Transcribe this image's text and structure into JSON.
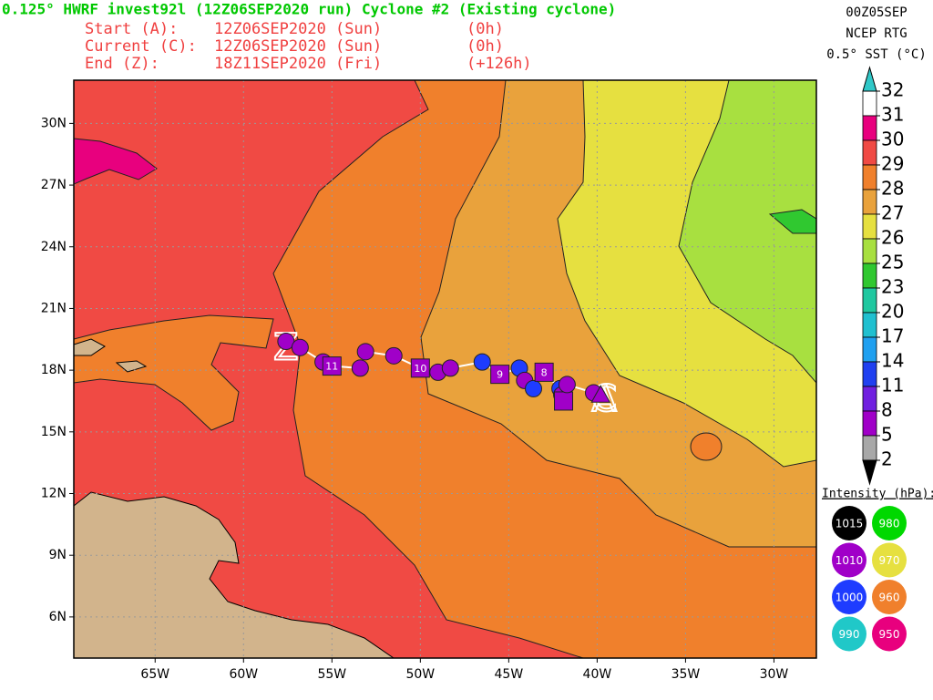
{
  "header": {
    "title": "0.125° HWRF invest92l (12Z06SEP2020 run) Cyclone #2 (Existing cyclone)",
    "lines": [
      [
        "Start (A):",
        "12Z06SEP2020 (Sun)",
        "(0h)"
      ],
      [
        "Current (C):",
        "12Z06SEP2020 (Sun)",
        "(0h)"
      ],
      [
        "End (Z):",
        "18Z11SEP2020 (Fri)",
        "(+126h)"
      ]
    ],
    "right": [
      "00Z05SEP",
      "NCEP RTG",
      "0.5° SST (°C)"
    ]
  },
  "map": {
    "lonlim": [
      -69.6,
      -27.6
    ],
    "latlim": [
      4.0,
      32.1
    ],
    "lonticks": [
      {
        "value": -65,
        "label": "65W"
      },
      {
        "value": -60,
        "label": "60W"
      },
      {
        "value": -55,
        "label": "55W"
      },
      {
        "value": -50,
        "label": "50W"
      },
      {
        "value": -45,
        "label": "45W"
      },
      {
        "value": -40,
        "label": "40W"
      },
      {
        "value": -35,
        "label": "35W"
      },
      {
        "value": -30,
        "label": "30W"
      }
    ],
    "latticks": [
      {
        "value": 30,
        "label": "30N"
      },
      {
        "value": 27,
        "label": "27N"
      },
      {
        "value": 24,
        "label": "24N"
      },
      {
        "value": 21,
        "label": "21N"
      },
      {
        "value": 18,
        "label": "18N"
      },
      {
        "value": 15,
        "label": "15N"
      },
      {
        "value": 12,
        "label": "12N"
      },
      {
        "value": 9,
        "label": "9N"
      },
      {
        "value": 6,
        "label": "6N"
      }
    ],
    "grid": true,
    "track": [
      {
        "lon": -57.6,
        "lat": 19.4,
        "shape": "circle",
        "color": "#a000c8"
      },
      {
        "lon": -56.8,
        "lat": 19.1,
        "shape": "circle",
        "color": "#a000c8"
      },
      {
        "lon": -55.5,
        "lat": 18.4,
        "shape": "circle",
        "color": "#a000c8"
      },
      {
        "lon": -55.0,
        "lat": 18.2,
        "shape": "square",
        "color": "#a000c8",
        "label": "11"
      },
      {
        "lon": -53.4,
        "lat": 18.1,
        "shape": "circle",
        "color": "#a000c8"
      },
      {
        "lon": -53.1,
        "lat": 18.9,
        "shape": "circle",
        "color": "#a000c8"
      },
      {
        "lon": -51.5,
        "lat": 18.7,
        "shape": "circle",
        "color": "#a000c8"
      },
      {
        "lon": -50.0,
        "lat": 18.1,
        "shape": "square",
        "color": "#a000c8",
        "label": "10"
      },
      {
        "lon": -49.0,
        "lat": 17.9,
        "shape": "circle",
        "color": "#a000c8"
      },
      {
        "lon": -48.3,
        "lat": 18.1,
        "shape": "circle",
        "color": "#a000c8"
      },
      {
        "lon": -46.5,
        "lat": 18.4,
        "shape": "circle",
        "color": "#1e3cff"
      },
      {
        "lon": -45.5,
        "lat": 17.8,
        "shape": "square",
        "color": "#a000c8",
        "label": "9"
      },
      {
        "lon": -44.4,
        "lat": 18.1,
        "shape": "circle",
        "color": "#1e3cff"
      },
      {
        "lon": -44.1,
        "lat": 17.5,
        "shape": "circle",
        "color": "#a000c8"
      },
      {
        "lon": -43.6,
        "lat": 17.1,
        "shape": "circle",
        "color": "#1e3cff"
      },
      {
        "lon": -43.0,
        "lat": 17.9,
        "shape": "square",
        "color": "#a000c8",
        "label": "8"
      },
      {
        "lon": -42.1,
        "lat": 17.1,
        "shape": "circle",
        "color": "#1e3cff"
      },
      {
        "lon": -42.0,
        "lat": 16.8,
        "shape": "circle",
        "color": "#a000c8"
      },
      {
        "lon": -41.9,
        "lat": 16.5,
        "shape": "square",
        "color": "#a000c8"
      },
      {
        "lon": -41.7,
        "lat": 17.3,
        "shape": "circle",
        "color": "#a000c8"
      },
      {
        "lon": -40.2,
        "lat": 16.9,
        "shape": "circle",
        "color": "#a000c8"
      },
      {
        "lon": -39.8,
        "lat": 16.8,
        "shape": "triangle",
        "color": "#a000c8"
      }
    ],
    "letters": [
      {
        "label": "Z",
        "lon": -57.6,
        "lat": 19.0
      },
      {
        "label": "A",
        "lon": -39.6,
        "lat": 16.5
      },
      {
        "label": "C",
        "lon": -39.6,
        "lat": 16.5
      }
    ]
  },
  "colorbar": {
    "levels": [
      32,
      31,
      30,
      29,
      28,
      27,
      26,
      25,
      23,
      20,
      17,
      14,
      11,
      8,
      5,
      2
    ],
    "colors": [
      "#ffffff",
      "#e8007e",
      "#f04a44",
      "#f0802c",
      "#e9a23c",
      "#e6e040",
      "#a8e040",
      "#30c830",
      "#20c8a0",
      "#20c0d0",
      "#20a0f0",
      "#2040f0",
      "#7020e0",
      "#a000c8",
      "#a8a8a8"
    ],
    "over_color": "#30c8c8",
    "under_color": "#000000"
  },
  "intensity": {
    "title": "Intensity (hPa):",
    "items": [
      {
        "label": "1015",
        "color": "#000000"
      },
      {
        "label": "980",
        "color": "#00d800"
      },
      {
        "label": "1010",
        "color": "#a000c8"
      },
      {
        "label": "970",
        "color": "#e6e040"
      },
      {
        "label": "1000",
        "color": "#1e3cff"
      },
      {
        "label": "960",
        "color": "#f0802c"
      },
      {
        "label": "990",
        "color": "#20c8c8"
      },
      {
        "label": "950",
        "color": "#e8007e"
      }
    ]
  }
}
